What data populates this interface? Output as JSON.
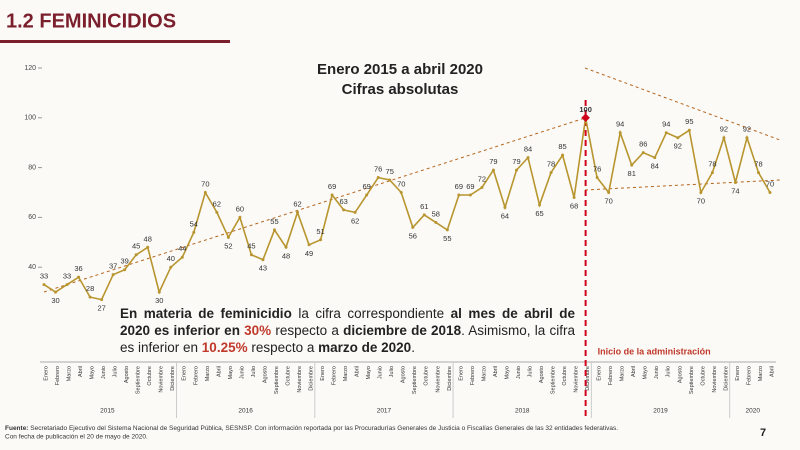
{
  "header": {
    "title": "1.2 FEMINICIDIOS",
    "page": "7"
  },
  "chart_data": {
    "type": "line",
    "title": "Enero 2015 a abril 2020",
    "subtitle": "Cifras absolutas",
    "categories": [
      "Enero",
      "Febrero",
      "Marzo",
      "Abril",
      "Mayo",
      "Junio",
      "Julio",
      "Agosto",
      "Septiembre",
      "Octubre",
      "Noviembre",
      "Diciembre",
      "Enero",
      "Febrero",
      "Marzo",
      "Abril",
      "Mayo",
      "Junio",
      "Julio",
      "Agosto",
      "Septiembre",
      "Octubre",
      "Noviembre",
      "Diciembre",
      "Enero",
      "Febrero",
      "Marzo",
      "Abril",
      "Mayo",
      "Junio",
      "Julio",
      "Agosto",
      "Septiembre",
      "Octubre",
      "Noviembre",
      "Diciembre",
      "Enero",
      "Febrero",
      "Marzo",
      "Abril",
      "Mayo",
      "Junio",
      "Julio",
      "Agosto",
      "Septiembre",
      "Octubre",
      "Noviembre",
      "Diciembre",
      "Enero",
      "Febrero",
      "Marzo",
      "Abril",
      "Mayo",
      "Junio",
      "Julio",
      "Agosto",
      "Septiembre",
      "Octubre",
      "Noviembre",
      "Diciembre",
      "Enero",
      "Febrero",
      "Marzo",
      "Abril"
    ],
    "years": [
      {
        "label": "2015",
        "months": 12
      },
      {
        "label": "2016",
        "months": 12
      },
      {
        "label": "2017",
        "months": 12
      },
      {
        "label": "2018",
        "months": 12
      },
      {
        "label": "2019",
        "months": 12
      },
      {
        "label": "2020",
        "months": 4
      }
    ],
    "series": [
      {
        "name": "Feminicidios",
        "color": "#b8952e",
        "values": [
          33,
          30,
          33,
          36,
          28,
          27,
          37,
          39,
          45,
          48,
          30,
          40,
          44,
          54,
          70,
          62,
          52,
          60,
          45,
          43,
          55,
          48,
          62,
          49,
          51,
          69,
          63,
          62,
          69,
          76,
          75,
          70,
          56,
          61,
          58,
          55,
          69,
          69,
          72,
          79,
          64,
          79,
          84,
          65,
          78,
          85,
          68,
          100,
          76,
          70,
          94,
          81,
          86,
          84,
          94,
          92,
          95,
          70,
          78,
          92,
          74,
          92,
          78,
          70
        ]
      }
    ],
    "ylim": [
      20,
      120
    ],
    "yticks": [
      40,
      60,
      80,
      100,
      120
    ],
    "annotation": "Inicio de la administración",
    "annotation_index": 47
  },
  "paragraph": [
    {
      "text": "En materia de feminicidio",
      "style": "bold"
    },
    {
      "text": " la cifra correspondiente ",
      "style": "normal"
    },
    {
      "text": "al mes de abril de 2020 es inferior en",
      "style": "bold"
    },
    {
      "text": " 30%",
      "style": "highlight"
    },
    {
      "text": " respecto a ",
      "style": "normal"
    },
    {
      "text": "diciembre de 2018",
      "style": "bold"
    },
    {
      "text": ". Asimismo, la cifra es inferior en ",
      "style": "normal"
    },
    {
      "text": "10.25%",
      "style": "highlight"
    },
    {
      "text": " respecto a ",
      "style": "normal"
    },
    {
      "text": "marzo de 2020",
      "style": "bold"
    },
    {
      "text": ".",
      "style": "normal"
    }
  ],
  "footnote": {
    "label": "Fuente:",
    "text": "Secretariado Ejecutivo del Sistema Nacional de Seguridad Pública, SESNSP. Con información reportada por las Procuradurías Generales de Justicia o Fiscalías Generales de las 32 entidades federativas.",
    "text2": "Con fecha de publicación el 20  de mayo de 2020."
  }
}
